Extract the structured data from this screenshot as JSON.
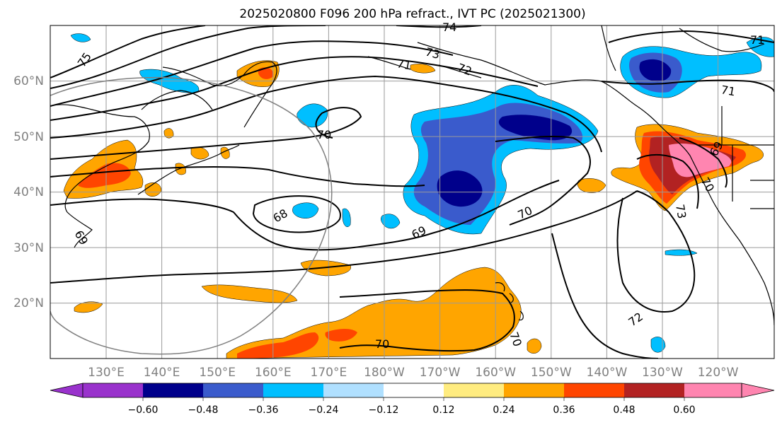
{
  "figure": {
    "title": "2025020800 F096 200 hPa refract., IVT PC (2025021300)"
  },
  "map": {
    "lat_labels": [
      "60°N",
      "50°N",
      "40°N",
      "30°N",
      "20°N"
    ],
    "lat_values": [
      60,
      50,
      40,
      30,
      20
    ],
    "lon_labels": [
      "130°E",
      "140°E",
      "150°E",
      "160°E",
      "170°E",
      "180°W",
      "170°W",
      "160°W",
      "150°W",
      "140°W",
      "130°W",
      "120°W"
    ],
    "lat_range": [
      10,
      70
    ],
    "contour_labels": [
      "75",
      "74",
      "73",
      "72",
      "71",
      "71",
      "70",
      "70",
      "70",
      "69",
      "69",
      "68",
      "69",
      "70",
      "72",
      "70",
      "71",
      "73"
    ],
    "colors": {
      "purple": "#9932cc",
      "navy": "#00008b",
      "royal": "#3a5bcc",
      "cyan": "#00bfff",
      "lightblue": "#b0e0ff",
      "white": "#ffffff",
      "yellow": "#ffec80",
      "orange": "#ffa500",
      "redorange": "#ff4500",
      "darkred": "#b22222",
      "pink": "#ff85b0",
      "grid": "#9a9a9a",
      "axis_text": "#808080"
    }
  },
  "colorbar": {
    "tick_labels": [
      "−0.60",
      "−0.48",
      "−0.36",
      "−0.24",
      "−0.12",
      "0.12",
      "0.24",
      "0.36",
      "0.48",
      "0.60"
    ],
    "levels": [
      -0.6,
      -0.48,
      -0.36,
      -0.24,
      -0.12,
      0.12,
      0.24,
      0.36,
      0.48,
      0.6
    ]
  }
}
